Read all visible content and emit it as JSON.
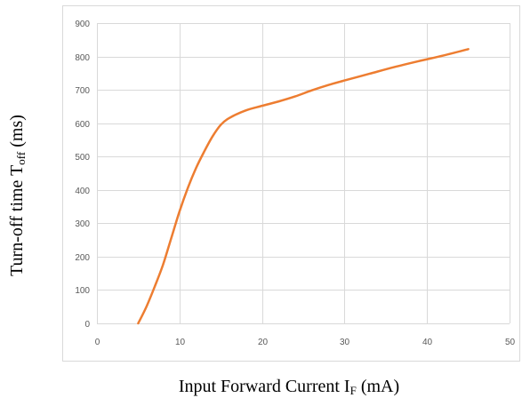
{
  "chart_data": {
    "type": "line",
    "title": "",
    "xlabel": {
      "main": "Input Forward  Current  I",
      "sub": "F",
      "unit": " (mA)"
    },
    "ylabel": {
      "main": "Turn-off time  T",
      "sub": "off",
      "unit": " (ms)"
    },
    "xlim": [
      0,
      50
    ],
    "ylim": [
      0,
      900
    ],
    "xticks": [
      0,
      10,
      20,
      30,
      40,
      50
    ],
    "yticks": [
      0,
      100,
      200,
      300,
      400,
      500,
      600,
      700,
      800,
      900
    ],
    "grid": true,
    "legend": "none",
    "colors": {
      "line": "#ED7D31",
      "grid": "#D9D9D9",
      "frame": "#D9D9D9",
      "tick_text": "#595959"
    },
    "series": [
      {
        "x": [
          5,
          6,
          7,
          8,
          9,
          10,
          11,
          12,
          13,
          14,
          15,
          16,
          18,
          20,
          22,
          24,
          26,
          28,
          30,
          33,
          36,
          39,
          42,
          45
        ],
        "y": [
          0,
          50,
          110,
          175,
          255,
          335,
          405,
          465,
          515,
          560,
          595,
          615,
          638,
          652,
          665,
          680,
          698,
          714,
          728,
          748,
          768,
          786,
          803,
          822
        ]
      }
    ]
  }
}
